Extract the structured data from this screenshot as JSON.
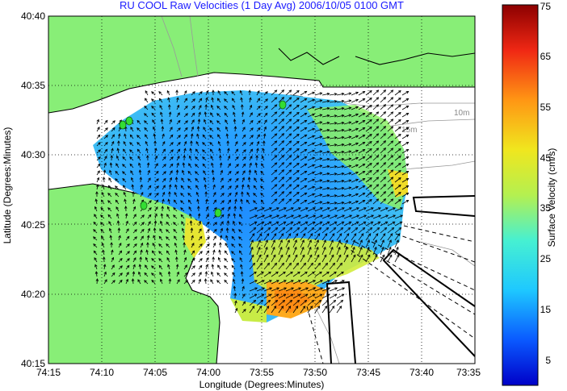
{
  "title": "RU COOL Raw Velocities (1 Day Avg) 2006/10/05 0100 GMT",
  "axes": {
    "xlabel": "Longitude (Degrees:Minutes)",
    "ylabel": "Latitude (Degrees:Minutes)",
    "xticks": [
      "74:15",
      "74:10",
      "74:05",
      "74:00",
      "73:55",
      "73:50",
      "73:45",
      "73:40",
      "73:35"
    ],
    "yticks": [
      "40:40",
      "40:35",
      "40:30",
      "40:25",
      "40:20",
      "40:15"
    ]
  },
  "colorbar": {
    "label": "Surface Velocity (cm/s)",
    "ticks": [
      "75",
      "65",
      "55",
      "45",
      "35",
      "25",
      "15",
      "5"
    ],
    "range": [
      0,
      75
    ]
  },
  "contour_labels": [
    "10m",
    "15m"
  ],
  "colors": {
    "land": "#88ee77",
    "water": "#ffffff",
    "title": "#1a1aff",
    "station": "#33dd33"
  }
}
